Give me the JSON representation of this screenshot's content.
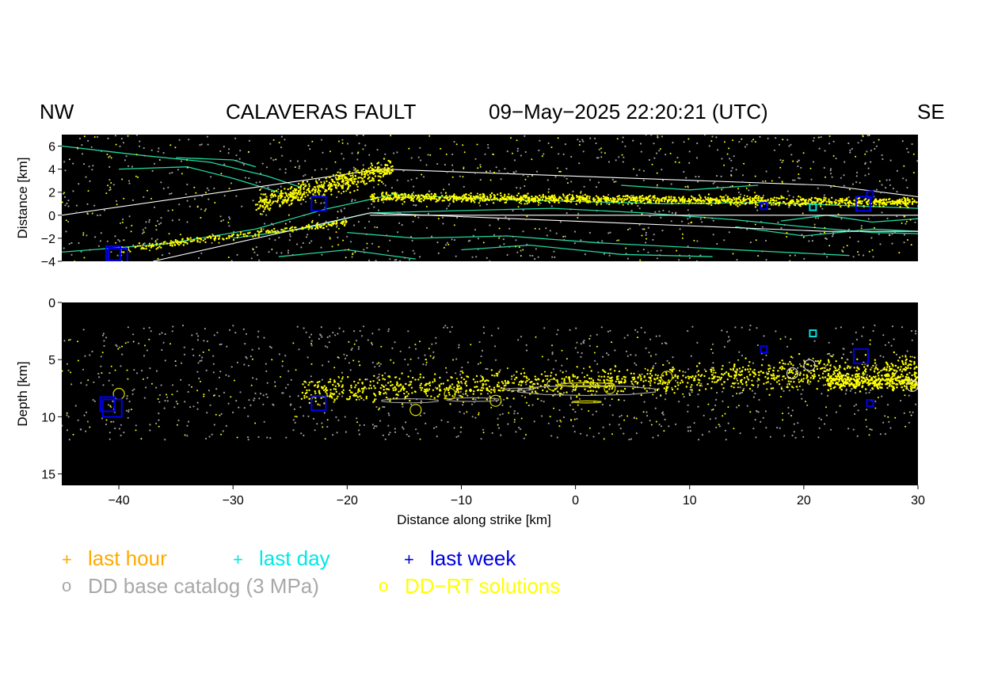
{
  "header": {
    "left": "NW",
    "title": "CALAVERAS FAULT",
    "timestamp": "09−May−2025  22:20:21 (UTC)",
    "right": "SE"
  },
  "chart_data": [
    {
      "type": "scatter",
      "title": "",
      "xlabel": "",
      "ylabel": "Distance [km]",
      "xlim": [
        -45,
        30
      ],
      "ylim": [
        -4,
        7
      ],
      "yticks": [
        6,
        4,
        2,
        0,
        -2,
        -4
      ],
      "background": "#000000",
      "series": [
        {
          "name": "last week",
          "color": "#0000ee",
          "marker": "square",
          "x": [
            -40.5,
            -22.5,
            16.5,
            25.2,
            25.8
          ],
          "y": [
            -3.3,
            1.0,
            0.8,
            1.0,
            1.8
          ]
        },
        {
          "name": "last day",
          "color": "#00e0e0",
          "marker": "square",
          "x": [
            20.8
          ],
          "y": [
            0.7
          ]
        }
      ]
    },
    {
      "type": "scatter",
      "title": "",
      "xlabel": "Distance along strike [km]",
      "ylabel": "Depth [km]",
      "xlim": [
        -45,
        30
      ],
      "ylim": [
        16,
        0
      ],
      "yticks": [
        0,
        5,
        10,
        15
      ],
      "xticks": [
        -40,
        -30,
        -20,
        -10,
        0,
        10,
        20,
        30
      ],
      "background": "#000000",
      "series": [
        {
          "name": "last week",
          "color": "#0000ee",
          "marker": "square",
          "x": [
            -41,
            -22.5,
            16.5,
            25,
            25.8
          ],
          "y": [
            8.9,
            8.8,
            4.1,
            4.7,
            8.8
          ]
        },
        {
          "name": "last day",
          "color": "#00e0e0",
          "marker": "square",
          "x": [
            20.8
          ],
          "y": [
            2.7
          ]
        }
      ]
    }
  ],
  "legend": {
    "hour": {
      "symbol": "+",
      "label": "last hour",
      "color": "#ffaa00"
    },
    "day": {
      "symbol": "+",
      "label": "last day",
      "color": "#00e8e8"
    },
    "week": {
      "symbol": "+",
      "label": "last week",
      "color": "#0000dd"
    },
    "base": {
      "symbol": "o",
      "label": "DD base catalog (3 MPa)",
      "color": "#a8a8a8"
    },
    "rt": {
      "symbol": "o",
      "label": "DD−RT solutions",
      "color": "#ffff00"
    }
  }
}
